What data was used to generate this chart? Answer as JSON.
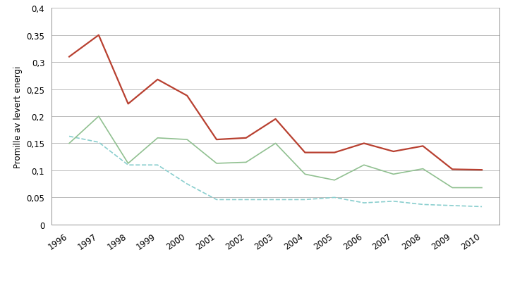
{
  "years": [
    1996,
    1997,
    1998,
    1999,
    2000,
    2001,
    2002,
    2003,
    2004,
    2005,
    2006,
    2007,
    2008,
    2009,
    2010
  ],
  "varslede": [
    0.163,
    0.152,
    0.11,
    0.11,
    0.075,
    0.046,
    0.046,
    0.046,
    0.046,
    0.05,
    0.04,
    0.043,
    0.037,
    0.035,
    0.033
  ],
  "ikke_varslede": [
    0.15,
    0.2,
    0.113,
    0.16,
    0.157,
    0.113,
    0.115,
    0.15,
    0.093,
    0.082,
    0.11,
    0.093,
    0.103,
    0.068,
    0.068
  ],
  "totalt": [
    0.31,
    0.35,
    0.223,
    0.268,
    0.238,
    0.157,
    0.16,
    0.195,
    0.133,
    0.133,
    0.15,
    0.135,
    0.145,
    0.102,
    0.101
  ],
  "varslede_color": "#89CECE",
  "ikke_varslede_color": "#90C090",
  "totalt_color": "#B84030",
  "ylabel": "Promille av levert energi",
  "ylim": [
    0,
    0.4
  ],
  "yticks": [
    0,
    0.05,
    0.1,
    0.15,
    0.2,
    0.25,
    0.3,
    0.35,
    0.4
  ],
  "ytick_labels": [
    "0",
    "0,05",
    "0,1",
    "0,15",
    "0,2",
    "0,25",
    "0,3",
    "0,35",
    "0,4"
  ],
  "background_color": "#ffffff",
  "grid_color": "#b0b0b0",
  "spine_color": "#808080"
}
